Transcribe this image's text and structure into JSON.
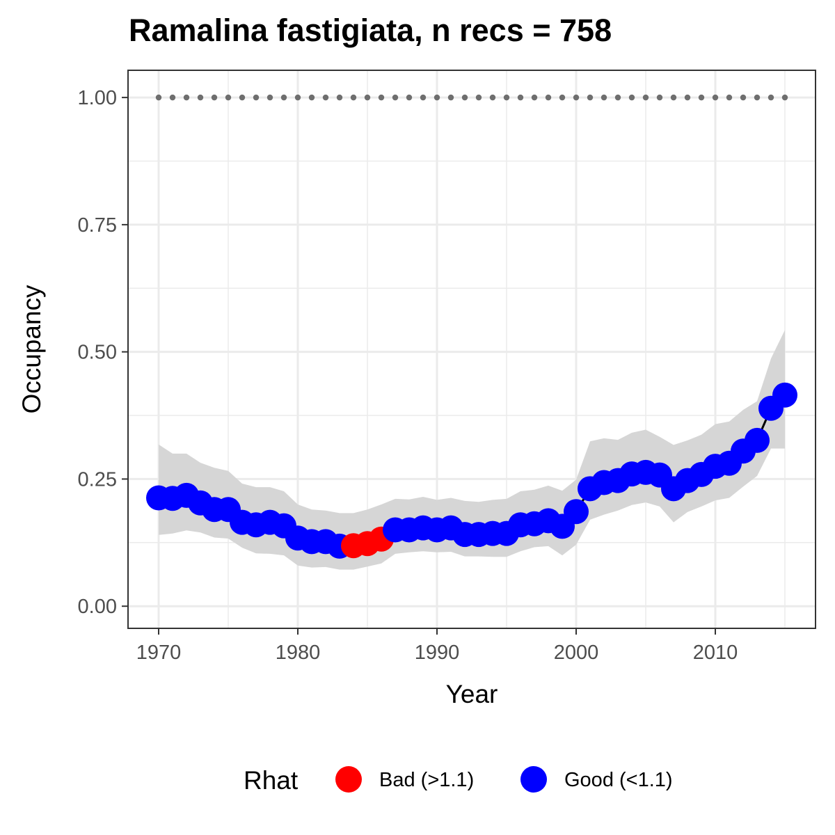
{
  "chart_data": {
    "type": "line",
    "title": "Ramalina fastigiata, n recs = 758",
    "xlabel": "Year",
    "ylabel": "Occupancy",
    "xlim": [
      1967.8,
      1917.2
    ],
    "ylim": [
      -0.0435,
      1.0535
    ],
    "x_ticks": [
      1970,
      1980,
      1990,
      2000,
      2010
    ],
    "x_tick_labels": [
      "1970",
      "1980",
      "1990",
      "2000",
      "2010"
    ],
    "y_ticks": [
      0,
      0.25,
      0.5,
      0.75,
      1
    ],
    "y_tick_labels": [
      "0.00",
      "0.25",
      "0.50",
      "0.75",
      "1.00"
    ],
    "grid": true,
    "legend": {
      "title": "Rhat",
      "position": "bottom",
      "entries": [
        {
          "label": "Bad (>1.1)",
          "color": "#ff0000"
        },
        {
          "label": "Good (<1.1)",
          "color": "#0000ff"
        }
      ]
    },
    "colors": {
      "bad": "#ff0000",
      "good": "#0000ff",
      "ribbon": "#d6d6d6",
      "line": "#000000",
      "reference": "#6e6e6e"
    },
    "reference_line": {
      "y": 1.0,
      "style": "dotted"
    },
    "x": [
      1970,
      1971,
      1972,
      1973,
      1974,
      1975,
      1976,
      1977,
      1978,
      1979,
      1980,
      1981,
      1982,
      1983,
      1984,
      1985,
      1986,
      1987,
      1988,
      1989,
      1990,
      1991,
      1992,
      1993,
      1994,
      1995,
      1996,
      1997,
      1998,
      1999,
      2000,
      2001,
      2002,
      2003,
      2004,
      2005,
      2006,
      2007,
      2008,
      2009,
      2010,
      2011,
      2012,
      2013,
      2014,
      2015
    ],
    "series": [
      {
        "values": [
          0.213,
          0.212,
          0.218,
          0.203,
          0.19,
          0.19,
          0.165,
          0.16,
          0.165,
          0.158,
          0.134,
          0.127,
          0.127,
          0.118,
          0.119,
          0.123,
          0.132,
          0.15,
          0.15,
          0.154,
          0.15,
          0.154,
          0.141,
          0.141,
          0.143,
          0.143,
          0.16,
          0.162,
          0.168,
          0.157,
          0.186,
          0.231,
          0.243,
          0.247,
          0.26,
          0.263,
          0.258,
          0.231,
          0.247,
          0.259,
          0.275,
          0.281,
          0.305,
          0.326,
          0.389,
          0.415
        ],
        "lower": [
          0.14,
          0.143,
          0.149,
          0.145,
          0.135,
          0.133,
          0.115,
          0.104,
          0.103,
          0.1,
          0.08,
          0.076,
          0.077,
          0.072,
          0.072,
          0.078,
          0.084,
          0.103,
          0.106,
          0.108,
          0.106,
          0.107,
          0.098,
          0.098,
          0.097,
          0.097,
          0.108,
          0.116,
          0.118,
          0.1,
          0.121,
          0.17,
          0.18,
          0.188,
          0.199,
          0.204,
          0.196,
          0.165,
          0.185,
          0.196,
          0.208,
          0.213,
          0.235,
          0.256,
          0.31,
          0.31
        ],
        "upper": [
          0.318,
          0.3,
          0.3,
          0.282,
          0.272,
          0.266,
          0.241,
          0.234,
          0.234,
          0.226,
          0.2,
          0.19,
          0.188,
          0.183,
          0.183,
          0.19,
          0.2,
          0.211,
          0.21,
          0.215,
          0.209,
          0.213,
          0.207,
          0.205,
          0.209,
          0.211,
          0.226,
          0.229,
          0.237,
          0.227,
          0.249,
          0.324,
          0.33,
          0.327,
          0.341,
          0.347,
          0.333,
          0.317,
          0.326,
          0.337,
          0.358,
          0.363,
          0.386,
          0.403,
          0.487,
          0.543
        ],
        "rhat_status": [
          "good",
          "good",
          "good",
          "good",
          "good",
          "good",
          "good",
          "good",
          "good",
          "good",
          "good",
          "good",
          "good",
          "good",
          "bad",
          "bad",
          "bad",
          "good",
          "good",
          "good",
          "good",
          "good",
          "good",
          "good",
          "good",
          "good",
          "good",
          "good",
          "good",
          "good",
          "good",
          "good",
          "good",
          "good",
          "good",
          "good",
          "good",
          "good",
          "good",
          "good",
          "good",
          "good",
          "good",
          "good",
          "good",
          "good"
        ]
      }
    ]
  }
}
